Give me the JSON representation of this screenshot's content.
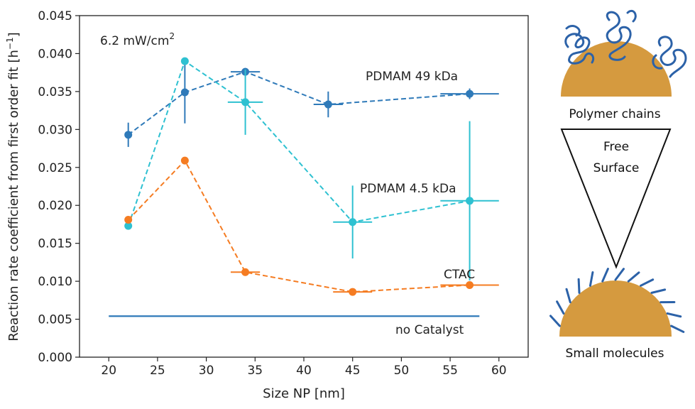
{
  "colors": {
    "pdmam49": "#2f7ab9",
    "pdmam45": "#2ec1d1",
    "ctac": "#f57c22",
    "no_catalyst": "#2f7ab9",
    "particle": "#d59a3f",
    "polymer": "#2c62a8"
  },
  "chart_data": {
    "type": "scatter",
    "xlabel": "Size NP [nm]",
    "ylabel": "Reaction rate coefficient from first order fit [h",
    "ylabel_sup": "−1",
    "ylabel_end": "]",
    "xlim": [
      17,
      63
    ],
    "ylim": [
      0,
      0.045
    ],
    "x_ticks": [
      "20",
      "25",
      "30",
      "35",
      "40",
      "45",
      "50",
      "55",
      "60"
    ],
    "y_ticks": [
      "0.000",
      "0.005",
      "0.010",
      "0.015",
      "0.020",
      "0.025",
      "0.030",
      "0.035",
      "0.040",
      "0.045"
    ],
    "grid": false,
    "annotation": "6.2 mW/cm",
    "annotation_sup": "2",
    "series": [
      {
        "name": "PDMAM 49 kDa",
        "color_key": "pdmam49",
        "x": [
          22,
          27.8,
          34,
          42.5,
          57
        ],
        "y": [
          0.0293,
          0.0349,
          0.0376,
          0.0333,
          0.0347
        ],
        "xerr": [
          0.1,
          0.1,
          1.5,
          1.5,
          3
        ],
        "yerr": [
          0.0016,
          0.0041,
          0.0005,
          0.0017,
          0.0007
        ]
      },
      {
        "name": "PDMAM 4.5 kDa",
        "color_key": "pdmam45",
        "x": [
          22,
          27.8,
          34,
          45,
          57
        ],
        "y": [
          0.0173,
          0.039,
          0.0336,
          0.0178,
          0.0206
        ],
        "xerr": [
          0.1,
          0.1,
          1.8,
          2,
          3
        ],
        "yerr": [
          0.0004,
          0.0003,
          0.0043,
          0.0048,
          0.0105
        ]
      },
      {
        "name": "CTAC",
        "color_key": "ctac",
        "x": [
          22,
          27.8,
          34,
          45,
          57
        ],
        "y": [
          0.0181,
          0.0259,
          0.0112,
          0.0086,
          0.0095
        ],
        "xerr": [
          0.1,
          0.1,
          1.5,
          2,
          3
        ],
        "yerr": [
          0.0002,
          0.0002,
          0.0002,
          0.0003,
          0.0002
        ]
      },
      {
        "name": "no Catalyst",
        "color_key": "no_catalyst",
        "type": "hline",
        "y": 0.0054,
        "x_range": [
          20,
          58
        ]
      }
    ]
  },
  "schematic": {
    "top_label": "Polymer chains",
    "middle_label_line1": "Free",
    "middle_label_line2": "Surface",
    "bottom_label": "Small molecules"
  }
}
